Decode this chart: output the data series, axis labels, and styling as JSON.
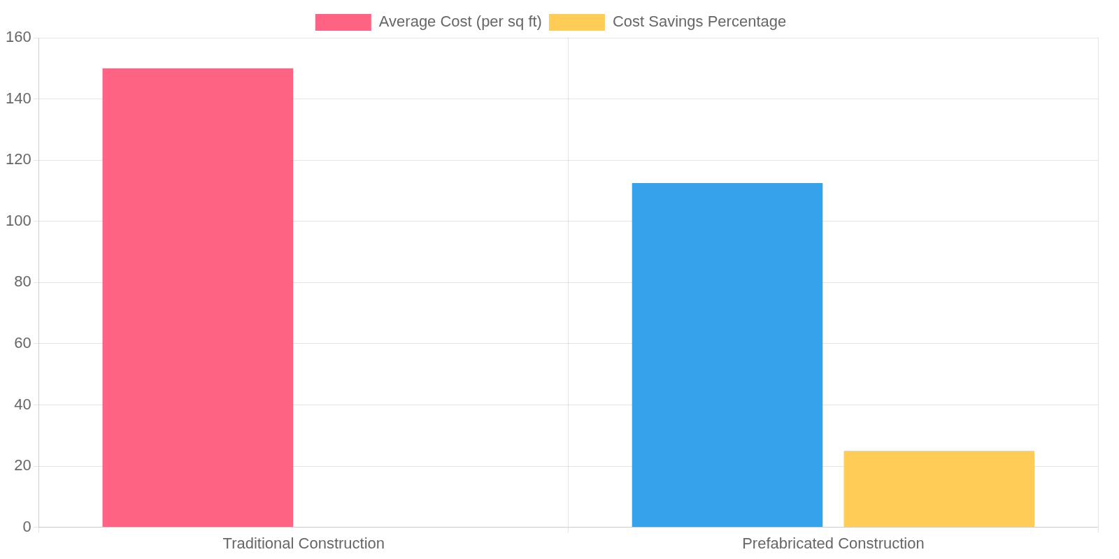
{
  "chart_data": {
    "type": "bar",
    "categories": [
      "Traditional Construction",
      "Prefabricated Construction"
    ],
    "series": [
      {
        "name": "Average Cost (per sq ft)",
        "color": "#ff6384",
        "colors": [
          "#ff6384",
          "#36a2eb"
        ],
        "values": [
          150,
          112.5
        ]
      },
      {
        "name": "Cost Savings Percentage",
        "color": "#ffcd56",
        "values": [
          null,
          25
        ]
      }
    ],
    "ylim": [
      0,
      160
    ],
    "yticks": [
      0,
      20,
      40,
      60,
      80,
      100,
      120,
      140,
      160
    ],
    "grid": true,
    "legend": "top"
  }
}
